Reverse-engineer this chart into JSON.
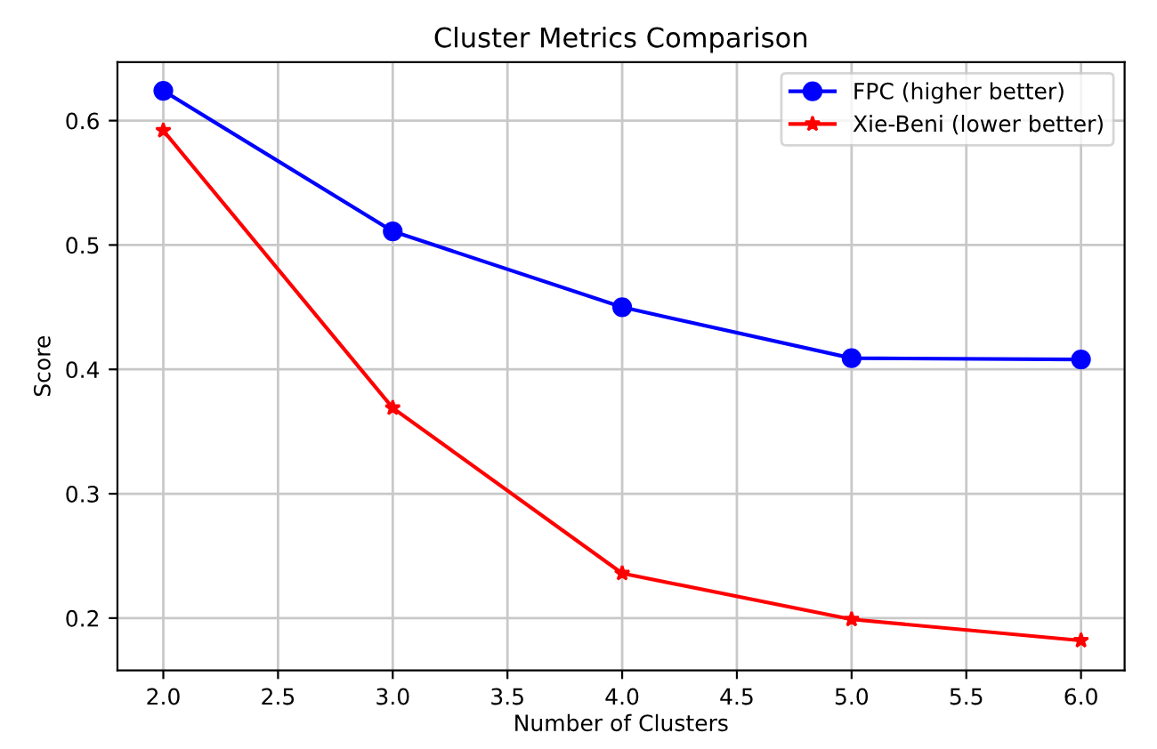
{
  "chart_data": {
    "type": "line",
    "title": "Cluster Metrics Comparison",
    "xlabel": "Number of Clusters",
    "ylabel": "Score",
    "x": [
      2,
      3,
      4,
      5,
      6
    ],
    "series": [
      {
        "name": "FPC (higher better)",
        "color": "#0000ff",
        "marker": "circle",
        "values": [
          0.624,
          0.511,
          0.45,
          0.409,
          0.408
        ]
      },
      {
        "name": "Xie-Beni (lower better)",
        "color": "#ff0000",
        "marker": "star",
        "values": [
          0.592,
          0.369,
          0.236,
          0.199,
          0.182
        ]
      }
    ],
    "xlim": [
      1.8,
      6.19
    ],
    "ylim": [
      0.158,
      0.647
    ],
    "xticks": [
      {
        "value": 2,
        "label": "2.0"
      },
      {
        "value": 2.5,
        "label": "2.5"
      },
      {
        "value": 3,
        "label": "3.0"
      },
      {
        "value": 3.5,
        "label": "3.5"
      },
      {
        "value": 4,
        "label": "4.0"
      },
      {
        "value": 4.5,
        "label": "4.5"
      },
      {
        "value": 5,
        "label": "5.0"
      },
      {
        "value": 5.5,
        "label": "5.5"
      },
      {
        "value": 6,
        "label": "6.0"
      }
    ],
    "yticks": [
      0.2,
      0.3,
      0.4,
      0.5,
      0.6
    ],
    "grid": true,
    "legend": "top right",
    "line_style": "solid"
  }
}
